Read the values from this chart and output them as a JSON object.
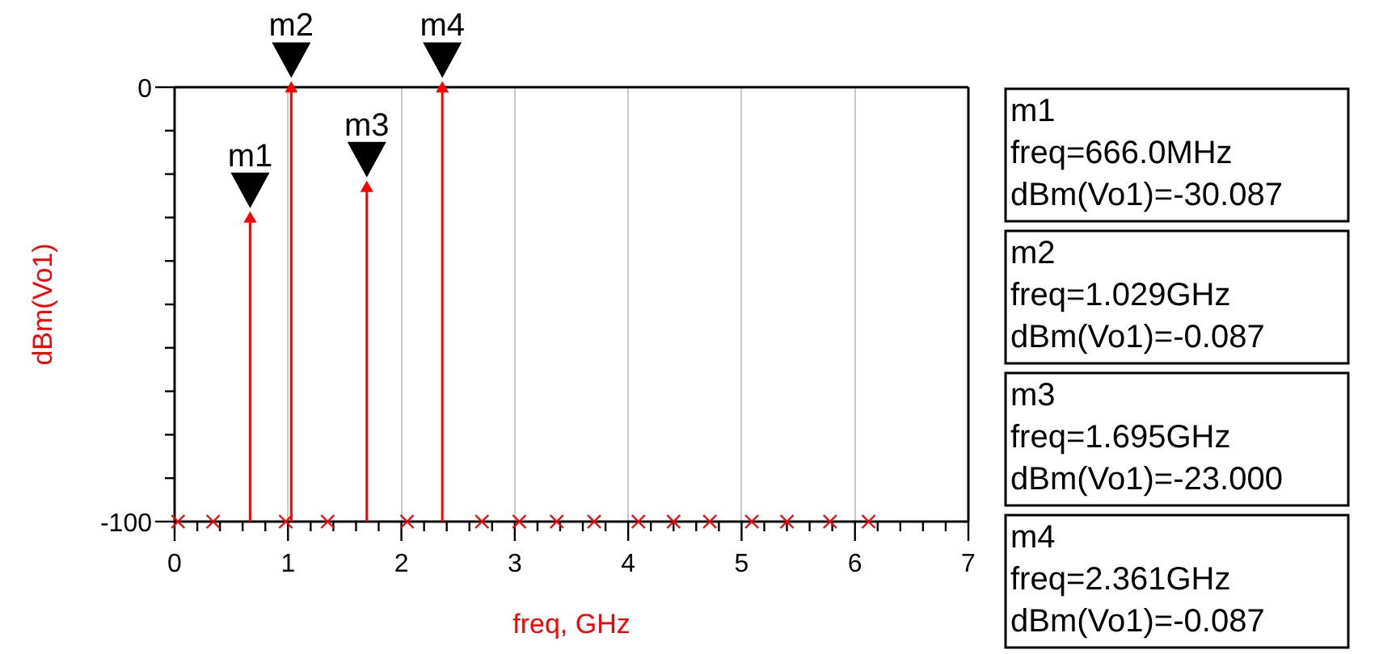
{
  "chart_data": {
    "type": "scatter",
    "xlabel": "freq, GHz",
    "ylabel": "dBm(Vo1)",
    "series": [
      {
        "color": "#ff0000",
        "marker": "triangle",
        "x": [
          0.666,
          1.029,
          1.695,
          2.361
        ],
        "values": [
          -30.087,
          -0.087,
          -23.0,
          -0.087
        ],
        "errors": [
          [
            -100,
            -30.087
          ],
          [
            -100,
            -0.087
          ],
          [
            -100,
            -23.0
          ],
          [
            -100,
            -0.087
          ]
        ]
      },
      {
        "color": "#ff0000",
        "x": [
          0.03,
          0.34,
          0.98,
          1.35,
          2.05,
          2.71,
          3.04,
          3.37,
          3.7,
          4.09,
          4.4,
          4.72,
          5.09,
          5.4,
          5.78,
          6.12
        ],
        "values": [
          -100,
          -100,
          -100,
          -100,
          -100,
          -100,
          -100,
          -100,
          -100,
          -100,
          -100,
          -100,
          -100,
          -100,
          -100,
          -100
        ]
      }
    ],
    "xlim": [
      0,
      7
    ],
    "xticks": [
      0,
      {
        "value": 0.2,
        "label": null
      },
      {
        "value": 0.4,
        "label": null
      },
      {
        "value": 0.6,
        "label": null
      },
      {
        "value": 0.8,
        "label": null
      },
      1,
      {
        "value": 1.2,
        "label": null
      },
      {
        "value": 1.4,
        "label": null
      },
      {
        "value": 1.6,
        "label": null
      },
      {
        "value": 1.8,
        "label": null
      },
      2,
      {
        "value": 2.2,
        "label": null
      },
      {
        "value": 2.4,
        "label": null
      },
      {
        "value": 2.6,
        "label": null
      },
      {
        "value": 2.8,
        "label": null
      },
      3,
      {
        "value": 3.2,
        "label": null
      },
      {
        "value": 3.4,
        "label": null
      },
      {
        "value": 3.6,
        "label": null
      },
      {
        "value": 3.8,
        "label": null
      },
      4,
      {
        "value": 4.2,
        "label": null
      },
      {
        "value": 4.4,
        "label": null
      },
      {
        "value": 4.6,
        "label": null
      },
      {
        "value": 4.8,
        "label": null
      },
      5,
      {
        "value": 5.2,
        "label": null
      },
      {
        "value": 5.4,
        "label": null
      },
      {
        "value": 5.6,
        "label": null
      },
      {
        "value": 5.8,
        "label": null
      },
      6,
      {
        "value": 6.2,
        "label": null
      },
      {
        "value": 6.4,
        "label": null
      },
      {
        "value": 6.6,
        "label": null
      },
      {
        "value": 6.8,
        "label": null
      },
      7
    ],
    "ylim": [
      -100,
      0
    ],
    "yticks": [
      -100,
      {
        "value": -90,
        "label": null
      },
      {
        "value": -80,
        "label": null
      },
      {
        "value": -70,
        "label": null
      },
      {
        "value": -60,
        "label": null
      },
      {
        "value": -50,
        "label": null
      },
      {
        "value": -40,
        "label": null
      },
      {
        "value": -30,
        "label": null
      },
      {
        "value": -20,
        "label": null
      },
      {
        "value": -10,
        "label": null
      },
      0
    ],
    "grid": "x",
    "marker": "cross",
    "annotations": [
      {
        "text": "m1",
        "x": 0.666,
        "y": -30.087
      },
      {
        "text": "m2",
        "x": 1.029,
        "y": -0.087
      },
      {
        "text": "m3",
        "x": 1.695,
        "y": -23.0
      },
      {
        "text": "m4",
        "x": 2.361,
        "y": -0.087
      },
      "m1\nfreq=666.0MHz\ndBm(Vo1)=-30.087",
      "m2\nfreq=1.029GHz\ndBm(Vo1)=-0.087",
      "m3\nfreq=1.695GHz\ndBm(Vo1)=-23.000",
      "m4\nfreq=2.361GHz\ndBm(Vo1)=-0.087"
    ]
  }
}
